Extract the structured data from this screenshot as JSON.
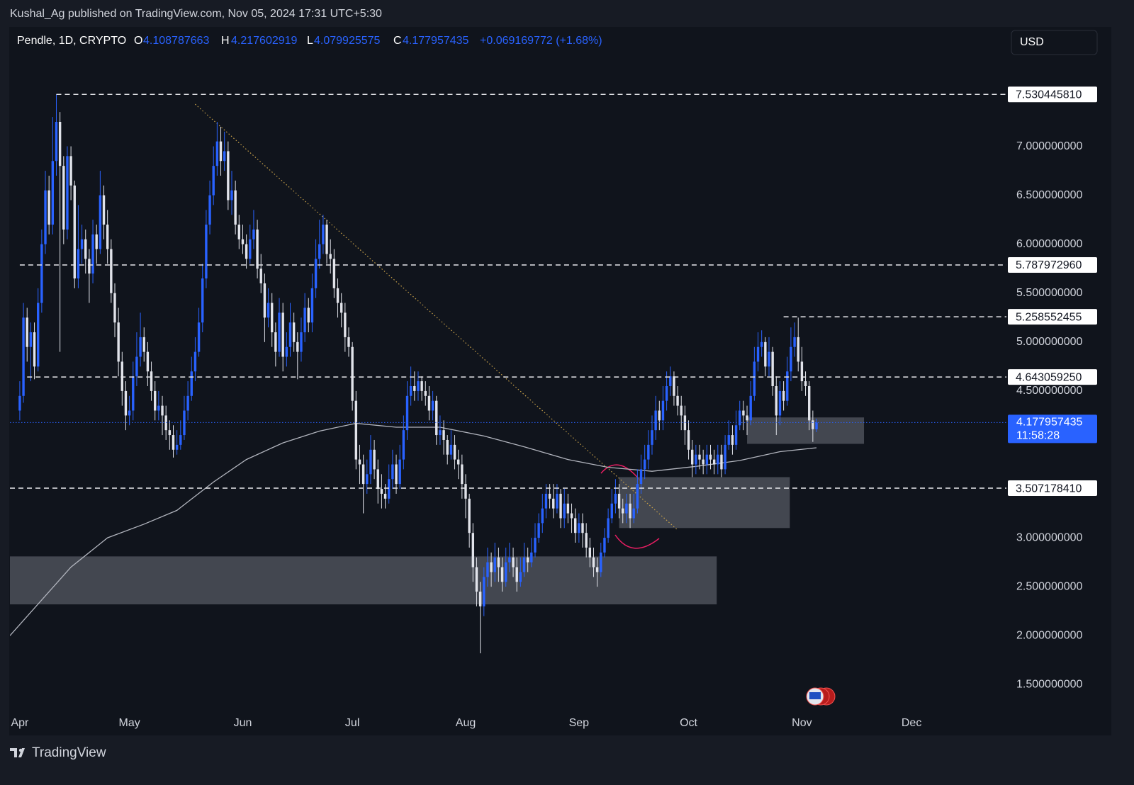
{
  "chart_data": {
    "type": "candlestick",
    "attribution": "Kushal_Ag published on TradingView.com, Nov 05, 2024 17:31 UTC+5:30",
    "header": {
      "symbol": "Pendle, 1D, CRYPTO",
      "open": {
        "prefix": "O",
        "value": 4.108787663
      },
      "high": {
        "prefix": "H",
        "value": 4.217602919
      },
      "low": {
        "prefix": "L",
        "value": 4.079925575
      },
      "close": {
        "prefix": "C",
        "value": 4.177957435
      },
      "change": "+0.069169772 (+1.68%)"
    },
    "currency": "USD",
    "brand": "TradingView",
    "xlim": [
      -2.7,
      269
    ],
    "ylim": [
      1.22,
      8.22
    ],
    "xticks": [
      {
        "value": 0,
        "label": "Apr"
      },
      {
        "value": 30,
        "label": "May"
      },
      {
        "value": 61,
        "label": "Jun"
      },
      {
        "value": 91,
        "label": "Jul"
      },
      {
        "value": 122,
        "label": "Aug"
      },
      {
        "value": 153,
        "label": "Sep"
      },
      {
        "value": 183,
        "label": "Oct"
      },
      {
        "value": 214,
        "label": "Nov"
      },
      {
        "value": 244,
        "label": "Dec"
      }
    ],
    "yticks": [
      {
        "value": 1.5,
        "label": "1.500000000"
      },
      {
        "value": 2,
        "label": "2.000000000"
      },
      {
        "value": 2.5,
        "label": "2.500000000"
      },
      {
        "value": 3,
        "label": "3.000000000"
      },
      {
        "value": 3.5,
        "label": "3.500000000"
      },
      {
        "value": 4.5,
        "label": "4.500000000"
      },
      {
        "value": 5,
        "label": "5.000000000"
      },
      {
        "value": 5.5,
        "label": "5.500000000"
      },
      {
        "value": 6,
        "label": "6.000000000"
      },
      {
        "value": 6.5,
        "label": "6.500000000"
      },
      {
        "value": 7,
        "label": "7.000000000"
      }
    ],
    "grid": false,
    "candles": {
      "up_color": "#2962ff",
      "down_color": "#e1e3ea",
      "open": [
        4.3,
        4.45,
        5.25,
        4.95,
        5.1,
        4.75,
        5.4,
        6.0,
        6.55,
        6.2,
        6.85,
        7.25,
        6.8,
        6.15,
        6.9,
        6.6,
        5.65,
        5.95,
        6.05,
        5.85,
        5.7,
        6.1,
        5.95,
        6.5,
        6.2,
        5.95,
        5.5,
        5.2,
        4.8,
        4.5,
        4.25,
        4.3,
        4.65,
        4.85,
        5.05,
        4.9,
        4.7,
        4.5,
        4.3,
        4.35,
        4.25,
        4.1,
        4.05,
        3.9,
        3.95,
        4.05,
        4.3,
        4.45,
        4.7,
        4.9,
        5.2,
        5.65,
        6.2,
        6.5,
        6.8,
        7.05,
        6.85,
        6.95,
        6.45,
        6.55,
        6.2,
        6.05,
        6.0,
        5.85,
        6.05,
        6.15,
        5.75,
        5.6,
        5.25,
        5.4,
        5.1,
        4.9,
        5.3,
        4.85,
        4.95,
        5.2,
        5.0,
        4.9,
        5.1,
        5.35,
        5.2,
        5.55,
        5.85,
        6.0,
        6.2,
        5.9,
        5.85,
        5.55,
        5.4,
        5.3,
        5.05,
        4.95,
        4.4,
        3.8,
        3.75,
        3.55,
        3.65,
        3.9,
        3.7,
        3.5,
        3.45,
        3.4,
        3.6,
        3.75,
        3.55,
        3.8,
        4.1,
        4.45,
        4.55,
        4.5,
        4.6,
        4.5,
        4.45,
        4.3,
        4.4,
        4.05,
        4.1,
        4.0,
        3.85,
        3.95,
        3.8,
        3.75,
        3.55,
        3.4,
        3.05,
        2.7,
        2.45,
        2.3,
        2.6,
        2.75,
        2.65,
        2.8,
        2.7,
        2.55,
        2.75,
        2.8,
        2.7,
        2.55,
        2.65,
        2.8,
        2.75,
        2.85,
        3.0,
        3.15,
        3.3,
        3.45,
        3.4,
        3.3,
        3.45,
        3.2,
        3.35,
        3.25,
        3.2,
        3.05,
        3.15,
        3.05,
        2.9,
        2.8,
        2.7,
        2.65,
        2.85,
        3.0,
        3.2,
        3.35,
        3.45,
        3.3,
        3.25,
        3.35,
        3.2,
        3.3,
        3.55,
        3.7,
        3.8,
        3.95,
        4.1,
        4.3,
        4.2,
        4.4,
        4.55,
        4.65,
        4.45,
        4.35,
        4.25,
        4.1,
        3.9,
        3.75,
        3.85,
        3.8,
        3.75,
        3.85,
        3.8,
        3.75,
        3.85,
        3.7,
        3.95,
        4.05,
        3.95,
        4.15,
        4.3,
        4.25,
        4.2,
        4.45,
        4.8,
        4.95,
        5.0,
        4.75,
        4.9,
        4.55,
        4.25,
        4.5,
        4.4,
        4.7,
        4.95,
        5.05,
        4.8,
        4.6,
        4.55,
        4.2,
        4.108787663
      ],
      "high": [
        4.6,
        5.4,
        5.35,
        5.2,
        5.2,
        5.55,
        6.15,
        6.75,
        6.7,
        7.3,
        7.53044581,
        7.35,
        6.9,
        7.0,
        7.0,
        6.65,
        6.4,
        6.2,
        6.15,
        5.95,
        6.25,
        6.2,
        6.75,
        6.6,
        6.35,
        6.05,
        5.6,
        5.35,
        4.9,
        4.6,
        4.45,
        4.8,
        5.1,
        5.3,
        5.15,
        5.0,
        4.8,
        4.6,
        4.5,
        4.45,
        4.35,
        4.2,
        4.15,
        4.1,
        4.2,
        4.45,
        4.6,
        4.85,
        5.05,
        5.35,
        5.8,
        6.35,
        6.65,
        7.0,
        7.25,
        7.2,
        7.15,
        7.05,
        6.75,
        6.65,
        6.3,
        6.2,
        6.1,
        6.2,
        6.35,
        6.25,
        5.9,
        5.7,
        5.55,
        5.5,
        5.2,
        5.45,
        5.4,
        5.1,
        5.4,
        5.3,
        5.1,
        5.25,
        5.5,
        5.45,
        5.7,
        6.05,
        6.25,
        6.3,
        6.25,
        6.05,
        5.95,
        5.65,
        5.5,
        5.4,
        5.15,
        5.0,
        4.5,
        3.95,
        3.85,
        3.8,
        4.05,
        4.0,
        3.8,
        3.65,
        3.55,
        3.75,
        3.9,
        3.85,
        3.95,
        4.25,
        4.6,
        4.75,
        4.7,
        4.7,
        4.65,
        4.6,
        4.55,
        4.5,
        4.45,
        4.25,
        4.2,
        4.05,
        4.1,
        4.05,
        3.9,
        3.85,
        3.65,
        3.45,
        3.15,
        2.8,
        2.55,
        2.7,
        2.9,
        2.85,
        2.95,
        2.9,
        2.8,
        2.9,
        2.95,
        2.9,
        2.8,
        2.8,
        2.95,
        2.9,
        3.0,
        3.15,
        3.25,
        3.45,
        3.55,
        3.55,
        3.55,
        3.55,
        3.5,
        3.5,
        3.45,
        3.35,
        3.3,
        3.25,
        3.25,
        3.15,
        3.0,
        2.9,
        2.8,
        2.95,
        3.1,
        3.3,
        3.5,
        3.6,
        3.55,
        3.4,
        3.45,
        3.45,
        3.45,
        3.7,
        3.85,
        3.95,
        4.1,
        4.25,
        4.45,
        4.4,
        4.55,
        4.7,
        4.75,
        4.7,
        4.55,
        4.45,
        4.35,
        4.2,
        4.0,
        3.95,
        3.95,
        3.9,
        3.95,
        3.95,
        3.9,
        3.95,
        3.95,
        4.05,
        4.2,
        4.15,
        4.3,
        4.4,
        4.4,
        4.35,
        4.6,
        4.95,
        5.1,
        5.12,
        5.05,
        5.05,
        4.95,
        4.65,
        4.6,
        4.6,
        4.85,
        5.15,
        5.2,
        5.25,
        4.95,
        4.7,
        4.6,
        4.3,
        4.217602919
      ],
      "low": [
        4.2,
        4.38,
        4.8,
        4.6,
        4.62,
        4.7,
        5.3,
        5.9,
        6.1,
        6.1,
        6.7,
        4.9,
        6.0,
        6.05,
        6.45,
        5.55,
        5.55,
        5.8,
        5.7,
        5.4,
        5.6,
        5.8,
        5.9,
        6.05,
        5.8,
        5.4,
        5.05,
        4.65,
        4.35,
        4.1,
        4.15,
        4.2,
        4.55,
        4.75,
        4.8,
        4.55,
        4.4,
        4.2,
        4.2,
        4.05,
        4.0,
        3.9,
        3.82,
        3.85,
        3.9,
        4.0,
        4.2,
        4.4,
        4.6,
        4.85,
        5.1,
        5.55,
        6.1,
        6.4,
        6.7,
        6.7,
        6.75,
        6.35,
        6.3,
        6.1,
        5.95,
        5.9,
        5.75,
        5.8,
        5.95,
        5.65,
        5.5,
        5.0,
        5.15,
        4.95,
        4.75,
        4.85,
        4.7,
        4.75,
        4.85,
        4.9,
        4.62,
        4.8,
        5.0,
        5.1,
        5.1,
        5.45,
        5.75,
        5.9,
        5.8,
        5.7,
        5.45,
        5.25,
        5.15,
        4.9,
        4.85,
        4.3,
        3.7,
        3.55,
        3.25,
        3.45,
        3.55,
        3.6,
        3.35,
        3.3,
        3.3,
        3.35,
        3.5,
        3.45,
        3.5,
        3.7,
        4.0,
        4.35,
        4.4,
        4.4,
        4.4,
        4.35,
        4.2,
        4.2,
        3.95,
        3.95,
        3.85,
        3.75,
        3.8,
        3.7,
        3.6,
        3.4,
        3.2,
        2.9,
        2.55,
        2.3,
        1.82,
        2.2,
        2.5,
        2.5,
        2.55,
        2.55,
        2.45,
        2.5,
        2.65,
        2.6,
        2.45,
        2.5,
        2.6,
        2.65,
        2.7,
        2.8,
        2.95,
        3.05,
        3.2,
        3.3,
        3.2,
        3.25,
        3.1,
        3.1,
        3.15,
        3.05,
        2.95,
        2.95,
        2.9,
        2.8,
        2.7,
        2.6,
        2.5,
        2.6,
        2.8,
        2.95,
        3.15,
        3.25,
        3.2,
        3.15,
        3.15,
        3.1,
        3.15,
        3.25,
        3.45,
        3.6,
        3.7,
        3.85,
        4.0,
        4.1,
        4.1,
        4.3,
        4.45,
        4.35,
        4.25,
        4.1,
        3.95,
        3.8,
        3.62,
        3.65,
        3.7,
        3.65,
        3.65,
        3.7,
        3.65,
        3.65,
        3.62,
        3.65,
        3.9,
        3.85,
        3.9,
        4.1,
        4.1,
        4.05,
        4.15,
        4.4,
        4.7,
        4.85,
        4.65,
        4.65,
        4.45,
        4.05,
        4.15,
        4.3,
        4.35,
        4.6,
        4.85,
        4.7,
        4.5,
        4.45,
        4.1,
        3.98,
        4.079925575
      ],
      "close": [
        4.45,
        5.25,
        4.95,
        5.1,
        4.75,
        5.4,
        6.0,
        6.55,
        6.2,
        6.85,
        7.25,
        6.8,
        6.15,
        6.9,
        6.6,
        5.65,
        5.95,
        6.05,
        5.85,
        5.7,
        6.1,
        5.95,
        6.5,
        6.2,
        5.95,
        5.5,
        5.2,
        4.8,
        4.5,
        4.25,
        4.3,
        4.65,
        4.85,
        5.05,
        4.9,
        4.7,
        4.5,
        4.3,
        4.35,
        4.25,
        4.1,
        4.05,
        3.9,
        3.95,
        4.05,
        4.3,
        4.45,
        4.7,
        4.9,
        5.2,
        5.65,
        6.2,
        6.5,
        6.8,
        7.05,
        6.85,
        6.95,
        6.45,
        6.55,
        6.2,
        6.05,
        6.0,
        5.85,
        6.05,
        6.15,
        5.75,
        5.6,
        5.25,
        5.4,
        5.1,
        4.9,
        5.3,
        4.85,
        4.95,
        5.2,
        5.0,
        4.9,
        5.1,
        5.35,
        5.2,
        5.55,
        5.85,
        6.0,
        6.2,
        5.9,
        5.85,
        5.55,
        5.4,
        5.3,
        5.05,
        4.95,
        4.4,
        3.8,
        3.75,
        3.55,
        3.65,
        3.9,
        3.7,
        3.5,
        3.45,
        3.4,
        3.6,
        3.75,
        3.55,
        3.8,
        4.1,
        4.45,
        4.55,
        4.5,
        4.6,
        4.5,
        4.45,
        4.3,
        4.4,
        4.05,
        4.1,
        4.0,
        3.85,
        3.95,
        3.8,
        3.75,
        3.55,
        3.4,
        3.05,
        2.7,
        2.45,
        2.3,
        2.6,
        2.75,
        2.65,
        2.8,
        2.7,
        2.55,
        2.75,
        2.8,
        2.7,
        2.55,
        2.65,
        2.8,
        2.75,
        2.85,
        3.0,
        3.15,
        3.3,
        3.45,
        3.4,
        3.3,
        3.45,
        3.2,
        3.35,
        3.25,
        3.2,
        3.05,
        3.15,
        3.05,
        2.9,
        2.8,
        2.7,
        2.65,
        2.85,
        3.0,
        3.2,
        3.35,
        3.45,
        3.3,
        3.25,
        3.35,
        3.2,
        3.3,
        3.55,
        3.7,
        3.8,
        3.95,
        4.1,
        4.3,
        4.2,
        4.4,
        4.55,
        4.65,
        4.45,
        4.35,
        4.25,
        4.1,
        3.9,
        3.75,
        3.85,
        3.8,
        3.75,
        3.85,
        3.8,
        3.75,
        3.85,
        3.7,
        3.95,
        4.05,
        3.95,
        4.15,
        4.3,
        4.25,
        4.2,
        4.45,
        4.8,
        4.95,
        5.0,
        4.75,
        4.9,
        4.55,
        4.25,
        4.5,
        4.4,
        4.7,
        4.95,
        5.05,
        4.8,
        4.6,
        4.55,
        4.2,
        4.11,
        4.177957435
      ]
    },
    "ma": {
      "color": "#b2b5be",
      "x": [
        -2.7,
        14,
        24,
        34,
        43,
        53,
        62,
        72,
        82,
        92,
        103,
        115,
        127,
        138,
        150,
        161,
        173,
        185,
        197,
        208,
        218
      ],
      "values": [
        2.0,
        2.7,
        3.0,
        3.14,
        3.28,
        3.57,
        3.8,
        3.97,
        4.09,
        4.17,
        4.13,
        4.13,
        4.04,
        3.93,
        3.8,
        3.72,
        3.68,
        3.73,
        3.79,
        3.88,
        3.92
      ]
    },
    "levels": [
      {
        "value": 7.53044581,
        "label": "7.530445810",
        "start": 10
      },
      {
        "value": 5.78797296,
        "label": "5.787972960",
        "start": 0
      },
      {
        "value": 5.258552455,
        "start": 209
      },
      {
        "value": 4.64305925,
        "label": "4.643059250",
        "start": 2
      },
      {
        "value": 3.50717841,
        "label": "3.507178410",
        "start": -2.7
      }
    ],
    "last_price": {
      "value": 4.177957435,
      "countdown": "11:58:28",
      "color": "#2962ff"
    },
    "zone_color": "#50545e",
    "zones": [
      {
        "x": [
          -2.7,
          190.7
        ],
        "y": [
          2.32,
          2.81
        ]
      },
      {
        "x": [
          164,
          210.7
        ],
        "y": [
          3.1,
          3.62
        ]
      },
      {
        "x": [
          199,
          231
        ],
        "y": [
          3.96,
          4.23
        ]
      }
    ],
    "trendline": {
      "color": "#c8a14a",
      "x": [
        48,
        180
      ],
      "y": [
        7.43,
        3.08
      ]
    }
  }
}
